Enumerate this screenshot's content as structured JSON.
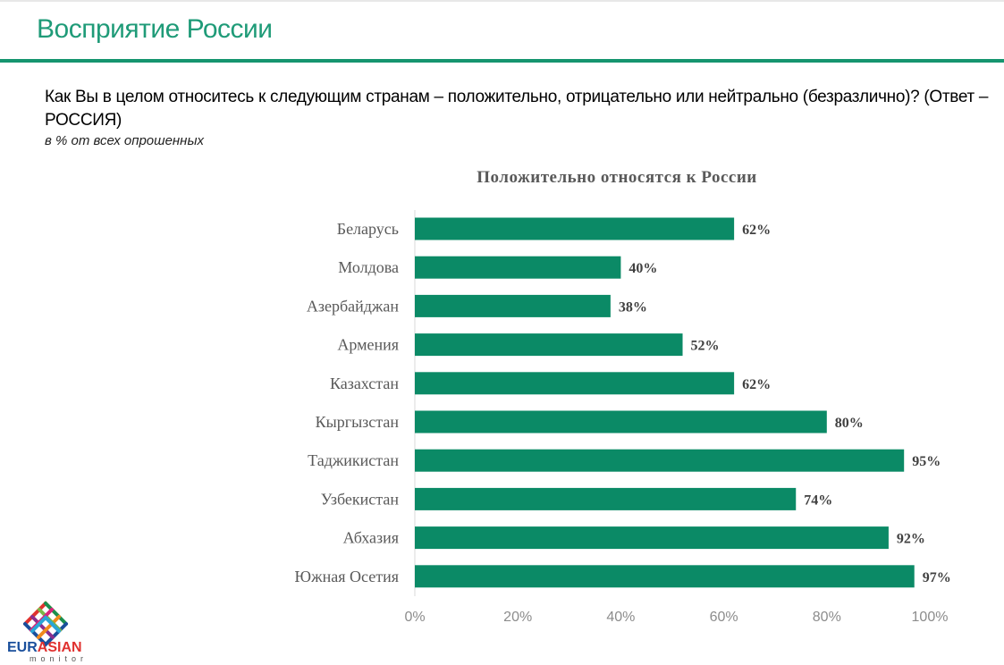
{
  "header": {
    "title": "Восприятие России"
  },
  "question": {
    "text": "Как Вы в целом относитесь к следующим странам – положительно, отрицательно или нейтрально (безразлично)? (Ответ – РОССИЯ)",
    "note": "в % от всех опрошенных"
  },
  "chart_data": {
    "type": "bar",
    "orientation": "horizontal",
    "title": "Положительно относятся к России",
    "categories": [
      "Беларусь",
      "Молдова",
      "Азербайджан",
      "Армения",
      "Казахстан",
      "Кыргызстан",
      "Таджикистан",
      "Узбекистан",
      "Абхазия",
      "Южная Осетия"
    ],
    "values": [
      62,
      40,
      38,
      52,
      62,
      80,
      95,
      74,
      92,
      97
    ],
    "value_labels": [
      "62%",
      "40%",
      "38%",
      "52%",
      "62%",
      "80%",
      "95%",
      "74%",
      "92%",
      "97%"
    ],
    "xlim": [
      0,
      100
    ],
    "x_ticks": [
      "0%",
      "20%",
      "40%",
      "60%",
      "80%",
      "100%"
    ],
    "grid": false,
    "colors": {
      "bar": "#0b8a66",
      "label": "#404040",
      "category": "#595959",
      "tick": "#8c8c8c"
    }
  },
  "logo": {
    "word_part1": "EUR",
    "word_part2": "ASIAN",
    "sub": "monitor"
  }
}
